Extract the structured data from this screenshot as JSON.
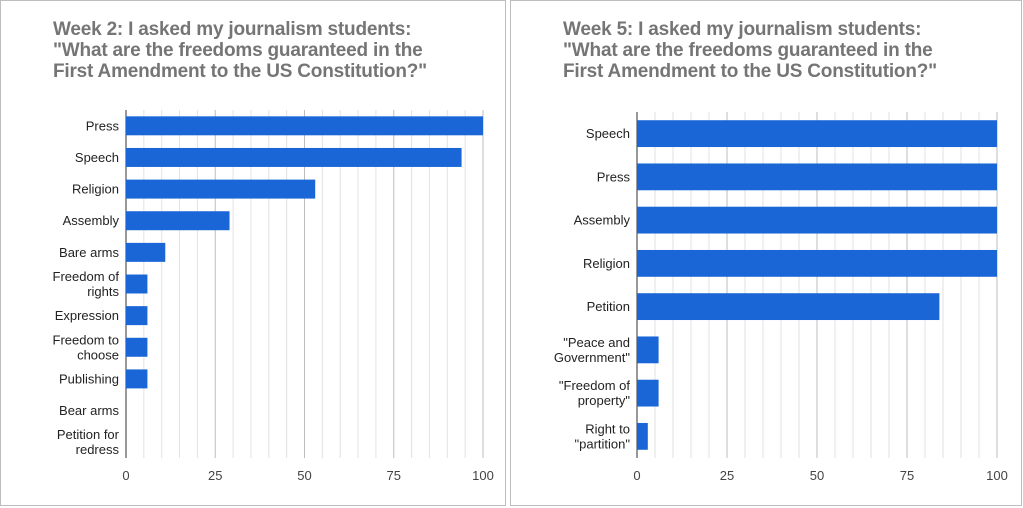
{
  "chart_data": [
    {
      "type": "bar",
      "orientation": "horizontal",
      "title": [
        "Week 2: I asked my journalism students:",
        "\"What are the freedoms guaranteed in the",
        "First Amendment to the US Constitution?\""
      ],
      "categories": [
        [
          "Press"
        ],
        [
          "Speech"
        ],
        [
          "Religion"
        ],
        [
          "Assembly"
        ],
        [
          "Bare arms"
        ],
        [
          "Freedom of",
          "rights"
        ],
        [
          "Expression"
        ],
        [
          "Freedom to",
          "choose"
        ],
        [
          "Publishing"
        ],
        [
          "Bear arms"
        ],
        [
          "Petition for",
          "redress"
        ]
      ],
      "values": [
        100,
        94,
        53,
        29,
        11,
        6,
        6,
        6,
        6,
        0,
        0
      ],
      "xlim": [
        0,
        100
      ],
      "xticks": [
        0,
        25,
        50,
        75,
        100
      ],
      "grid": true,
      "bar_color": "#1a66d6"
    },
    {
      "type": "bar",
      "orientation": "horizontal",
      "title": [
        "Week 5: I asked my journalism students:",
        "\"What are the freedoms guaranteed in the",
        "First Amendment to the US Constitution?\""
      ],
      "categories": [
        [
          "Speech"
        ],
        [
          "Press"
        ],
        [
          "Assembly"
        ],
        [
          "Religion"
        ],
        [
          "Petition"
        ],
        [
          "\"Peace and",
          "Government\""
        ],
        [
          "\"Freedom of",
          "property\""
        ],
        [
          "Right to",
          "\"partition\""
        ]
      ],
      "values": [
        100,
        100,
        100,
        100,
        84,
        6,
        6,
        3
      ],
      "xlim": [
        0,
        100
      ],
      "xticks": [
        0,
        25,
        50,
        75,
        100
      ],
      "grid": true,
      "bar_color": "#1a66d6"
    }
  ]
}
